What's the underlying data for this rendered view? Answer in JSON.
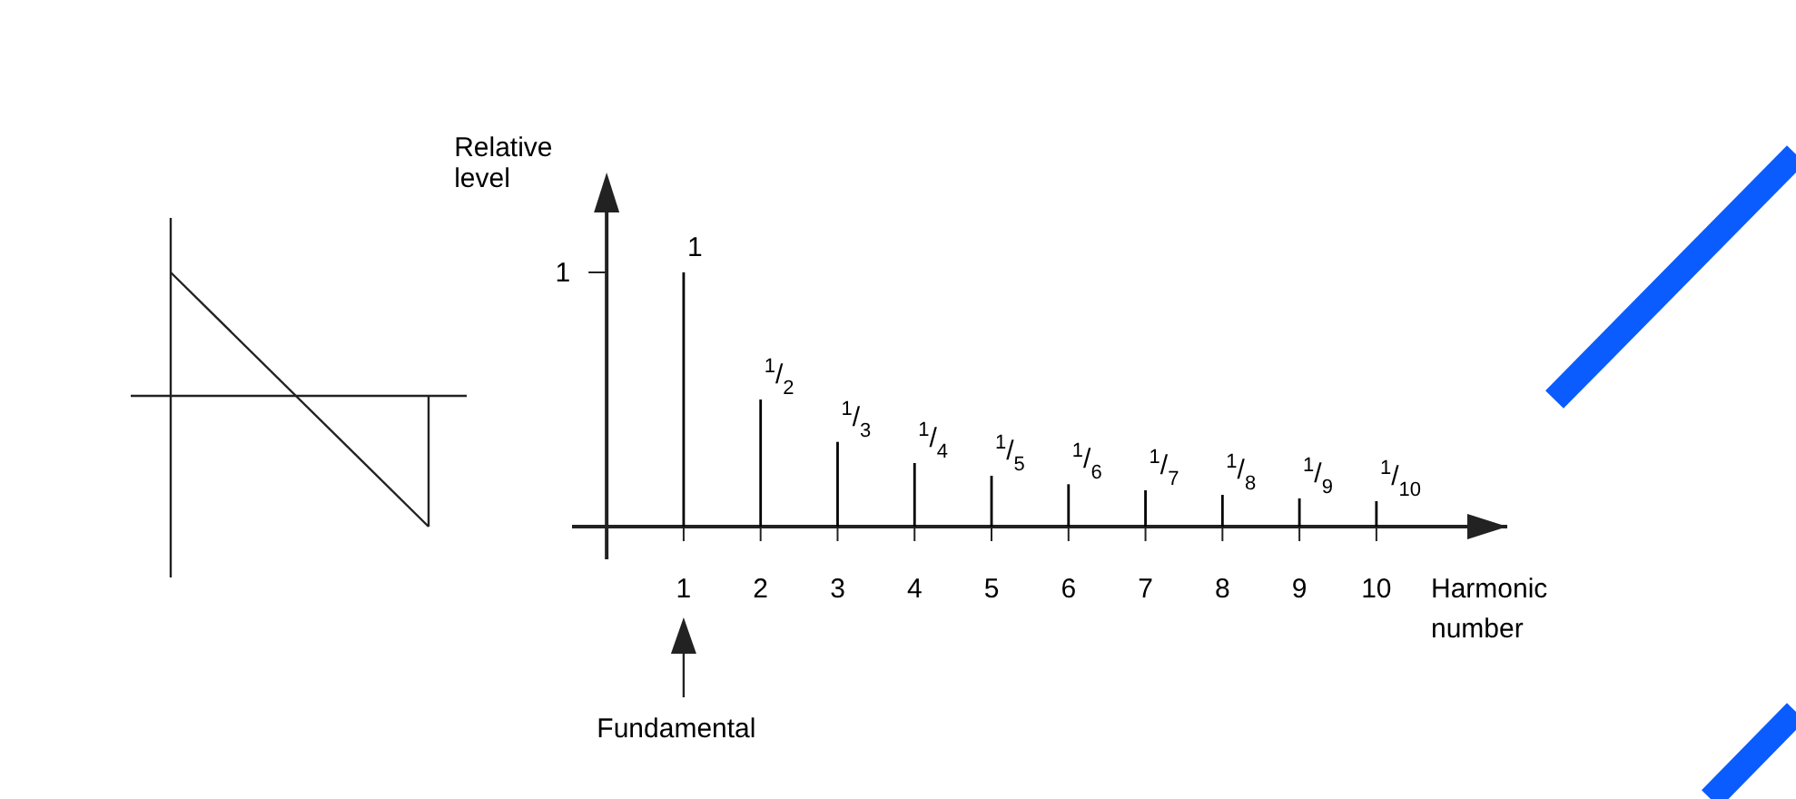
{
  "chart_data": {
    "type": "bar",
    "xlabel": "Harmonic number",
    "ylabel": "Relative level",
    "x": [
      1,
      2,
      3,
      4,
      5,
      6,
      7,
      8,
      9,
      10
    ],
    "values": [
      1,
      0.5,
      0.3333,
      0.25,
      0.2,
      0.1667,
      0.1429,
      0.125,
      0.1111,
      0.1
    ],
    "value_labels": [
      "1",
      "$^{1}$/$_{2}$",
      "$^{1}$/$_{3}$",
      "$^{1}$/$_{4}$",
      "$^{1}$/$_{5}$",
      "$^{1}$/$_{6}$",
      "$^{1}$/$_{7}$",
      "$^{1}$/$_{8}$",
      "$^{1}$/$_{9}$",
      "$^{1}$/$_{10}$"
    ],
    "color": "#000000",
    "xlim": [
      -0.45,
      11.7
    ],
    "xticks": [
      1,
      2,
      3,
      4,
      5,
      6,
      7,
      8,
      9,
      10
    ],
    "annotations": [
      "1",
      "Fundamental"
    ]
  }
}
